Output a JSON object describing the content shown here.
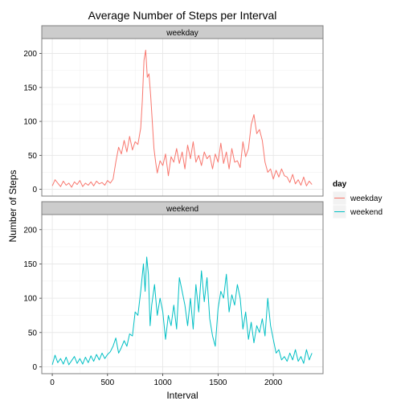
{
  "chart_data": {
    "type": "line",
    "title": "Average Number of Steps per Interval",
    "xlabel": "Interval",
    "ylabel": "Number of Steps",
    "xlim": [
      -95,
      2450
    ],
    "ylim": [
      -10,
      222
    ],
    "x_ticks": [
      0,
      500,
      1000,
      1500,
      2000
    ],
    "y_ticks": [
      0,
      50,
      100,
      150,
      200
    ],
    "grid": true,
    "legend": {
      "title": "day",
      "position": "right"
    },
    "panels": [
      {
        "strip": "weekday",
        "series": "weekday"
      },
      {
        "strip": "weekend",
        "series": "weekend"
      }
    ],
    "series": [
      {
        "name": "weekday",
        "color": "#F8766D",
        "points": [
          [
            0,
            5
          ],
          [
            25,
            14
          ],
          [
            50,
            9
          ],
          [
            75,
            4
          ],
          [
            100,
            12
          ],
          [
            125,
            6
          ],
          [
            150,
            9
          ],
          [
            175,
            3
          ],
          [
            200,
            11
          ],
          [
            225,
            7
          ],
          [
            250,
            13
          ],
          [
            275,
            4
          ],
          [
            300,
            9
          ],
          [
            325,
            6
          ],
          [
            350,
            11
          ],
          [
            375,
            5
          ],
          [
            400,
            12
          ],
          [
            425,
            8
          ],
          [
            450,
            10
          ],
          [
            475,
            6
          ],
          [
            500,
            13
          ],
          [
            525,
            9
          ],
          [
            550,
            15
          ],
          [
            575,
            40
          ],
          [
            600,
            62
          ],
          [
            625,
            52
          ],
          [
            650,
            72
          ],
          [
            675,
            55
          ],
          [
            700,
            78
          ],
          [
            725,
            58
          ],
          [
            750,
            70
          ],
          [
            775,
            66
          ],
          [
            800,
            90
          ],
          [
            815,
            130
          ],
          [
            830,
            190
          ],
          [
            845,
            205
          ],
          [
            860,
            165
          ],
          [
            875,
            170
          ],
          [
            890,
            138
          ],
          [
            905,
            100
          ],
          [
            920,
            60
          ],
          [
            935,
            40
          ],
          [
            950,
            24
          ],
          [
            975,
            42
          ],
          [
            1000,
            35
          ],
          [
            1025,
            52
          ],
          [
            1050,
            20
          ],
          [
            1075,
            48
          ],
          [
            1100,
            40
          ],
          [
            1125,
            60
          ],
          [
            1150,
            38
          ],
          [
            1175,
            55
          ],
          [
            1200,
            30
          ],
          [
            1225,
            65
          ],
          [
            1250,
            45
          ],
          [
            1275,
            70
          ],
          [
            1300,
            40
          ],
          [
            1325,
            50
          ],
          [
            1350,
            35
          ],
          [
            1375,
            55
          ],
          [
            1400,
            45
          ],
          [
            1425,
            50
          ],
          [
            1450,
            30
          ],
          [
            1475,
            52
          ],
          [
            1500,
            40
          ],
          [
            1525,
            68
          ],
          [
            1550,
            38
          ],
          [
            1575,
            55
          ],
          [
            1600,
            30
          ],
          [
            1625,
            60
          ],
          [
            1650,
            40
          ],
          [
            1675,
            42
          ],
          [
            1700,
            32
          ],
          [
            1725,
            70
          ],
          [
            1750,
            48
          ],
          [
            1775,
            60
          ],
          [
            1800,
            95
          ],
          [
            1825,
            110
          ],
          [
            1850,
            82
          ],
          [
            1875,
            88
          ],
          [
            1900,
            72
          ],
          [
            1925,
            40
          ],
          [
            1950,
            25
          ],
          [
            1975,
            30
          ],
          [
            2000,
            15
          ],
          [
            2025,
            28
          ],
          [
            2050,
            18
          ],
          [
            2075,
            30
          ],
          [
            2100,
            20
          ],
          [
            2125,
            18
          ],
          [
            2150,
            10
          ],
          [
            2175,
            22
          ],
          [
            2200,
            8
          ],
          [
            2225,
            14
          ],
          [
            2250,
            6
          ],
          [
            2275,
            18
          ],
          [
            2300,
            5
          ],
          [
            2325,
            12
          ],
          [
            2350,
            7
          ]
        ]
      },
      {
        "name": "weekend",
        "color": "#00BFC4",
        "points": [
          [
            0,
            3
          ],
          [
            25,
            17
          ],
          [
            50,
            6
          ],
          [
            75,
            12
          ],
          [
            100,
            4
          ],
          [
            125,
            14
          ],
          [
            150,
            3
          ],
          [
            175,
            9
          ],
          [
            200,
            15
          ],
          [
            225,
            5
          ],
          [
            250,
            12
          ],
          [
            275,
            4
          ],
          [
            300,
            14
          ],
          [
            325,
            6
          ],
          [
            350,
            16
          ],
          [
            375,
            8
          ],
          [
            400,
            18
          ],
          [
            425,
            10
          ],
          [
            450,
            20
          ],
          [
            475,
            12
          ],
          [
            500,
            18
          ],
          [
            525,
            22
          ],
          [
            550,
            30
          ],
          [
            575,
            42
          ],
          [
            600,
            20
          ],
          [
            625,
            28
          ],
          [
            650,
            38
          ],
          [
            675,
            30
          ],
          [
            700,
            48
          ],
          [
            725,
            45
          ],
          [
            750,
            80
          ],
          [
            775,
            75
          ],
          [
            800,
            110
          ],
          [
            825,
            150
          ],
          [
            840,
            110
          ],
          [
            855,
            160
          ],
          [
            870,
            135
          ],
          [
            885,
            60
          ],
          [
            900,
            90
          ],
          [
            925,
            120
          ],
          [
            950,
            75
          ],
          [
            975,
            100
          ],
          [
            1000,
            80
          ],
          [
            1025,
            40
          ],
          [
            1050,
            75
          ],
          [
            1075,
            60
          ],
          [
            1100,
            90
          ],
          [
            1125,
            55
          ],
          [
            1150,
            130
          ],
          [
            1175,
            110
          ],
          [
            1200,
            90
          ],
          [
            1225,
            60
          ],
          [
            1250,
            100
          ],
          [
            1275,
            55
          ],
          [
            1300,
            120
          ],
          [
            1325,
            80
          ],
          [
            1350,
            140
          ],
          [
            1375,
            95
          ],
          [
            1400,
            130
          ],
          [
            1425,
            70
          ],
          [
            1450,
            45
          ],
          [
            1475,
            30
          ],
          [
            1500,
            85
          ],
          [
            1525,
            110
          ],
          [
            1550,
            100
          ],
          [
            1575,
            135
          ],
          [
            1600,
            80
          ],
          [
            1625,
            105
          ],
          [
            1650,
            90
          ],
          [
            1675,
            120
          ],
          [
            1700,
            100
          ],
          [
            1725,
            55
          ],
          [
            1750,
            80
          ],
          [
            1775,
            40
          ],
          [
            1800,
            65
          ],
          [
            1825,
            35
          ],
          [
            1850,
            60
          ],
          [
            1875,
            50
          ],
          [
            1900,
            70
          ],
          [
            1925,
            45
          ],
          [
            1950,
            100
          ],
          [
            1975,
            60
          ],
          [
            2000,
            40
          ],
          [
            2025,
            20
          ],
          [
            2050,
            25
          ],
          [
            2075,
            10
          ],
          [
            2100,
            15
          ],
          [
            2125,
            8
          ],
          [
            2150,
            20
          ],
          [
            2175,
            10
          ],
          [
            2200,
            25
          ],
          [
            2225,
            8
          ],
          [
            2250,
            15
          ],
          [
            2275,
            5
          ],
          [
            2300,
            25
          ],
          [
            2325,
            10
          ],
          [
            2350,
            20
          ]
        ]
      }
    ]
  }
}
